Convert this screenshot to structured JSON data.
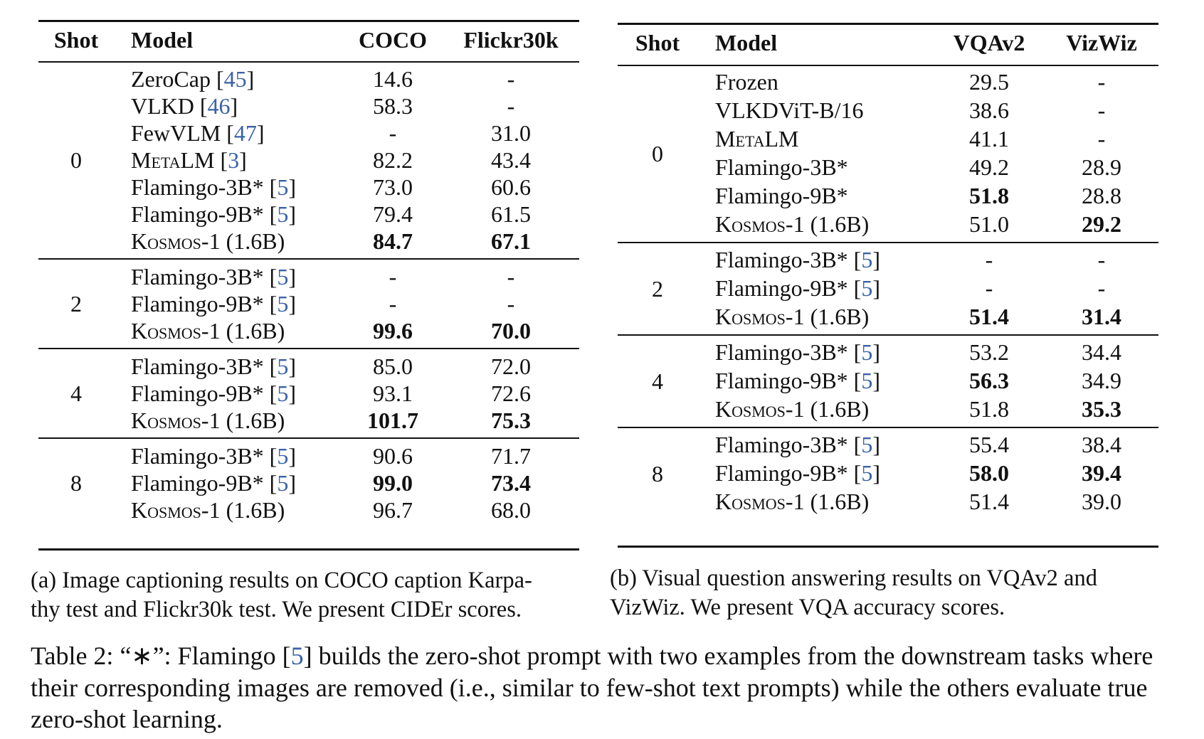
{
  "table_a": {
    "headers": [
      "Shot",
      "Model",
      "COCO",
      "Flickr30k"
    ],
    "groups": [
      {
        "shot": "0",
        "rows": [
          {
            "model": "ZeroCap",
            "ref": "45",
            "coco": "14.6",
            "flickr": "-"
          },
          {
            "model": "VLKD",
            "ref": "46",
            "coco": "58.3",
            "flickr": "-"
          },
          {
            "model": "FewVLM",
            "ref": "47",
            "coco": "-",
            "flickr": "31.0"
          },
          {
            "model": "MetaLM",
            "ref": "3",
            "coco": "82.2",
            "flickr": "43.4"
          },
          {
            "model": "Flamingo-3B*",
            "ref": "5",
            "coco": "73.0",
            "flickr": "60.6"
          },
          {
            "model": "Flamingo-9B*",
            "ref": "5",
            "coco": "79.4",
            "flickr": "61.5"
          },
          {
            "model": "Kosmos-1 (1.6B)",
            "ref": "",
            "coco": "84.7",
            "flickr": "67.1",
            "bold": [
              "coco",
              "flickr"
            ]
          }
        ]
      },
      {
        "shot": "2",
        "rows": [
          {
            "model": "Flamingo-3B*",
            "ref": "5",
            "coco": "-",
            "flickr": "-"
          },
          {
            "model": "Flamingo-9B*",
            "ref": "5",
            "coco": "-",
            "flickr": "-"
          },
          {
            "model": "Kosmos-1 (1.6B)",
            "ref": "",
            "coco": "99.6",
            "flickr": "70.0",
            "bold": [
              "coco",
              "flickr"
            ]
          }
        ]
      },
      {
        "shot": "4",
        "rows": [
          {
            "model": "Flamingo-3B*",
            "ref": "5",
            "coco": "85.0",
            "flickr": "72.0"
          },
          {
            "model": "Flamingo-9B*",
            "ref": "5",
            "coco": "93.1",
            "flickr": "72.6"
          },
          {
            "model": "Kosmos-1 (1.6B)",
            "ref": "",
            "coco": "101.7",
            "flickr": "75.3",
            "bold": [
              "coco",
              "flickr"
            ]
          }
        ]
      },
      {
        "shot": "8",
        "rows": [
          {
            "model": "Flamingo-3B*",
            "ref": "5",
            "coco": "90.6",
            "flickr": "71.7"
          },
          {
            "model": "Flamingo-9B*",
            "ref": "5",
            "coco": "99.0",
            "flickr": "73.4",
            "bold": [
              "coco",
              "flickr"
            ]
          },
          {
            "model": "Kosmos-1 (1.6B)",
            "ref": "",
            "coco": "96.7",
            "flickr": "68.0"
          }
        ]
      }
    ],
    "caption": "(a) Image captioning results on COCO caption Karpa-\nthy test and Flickr30k test. We present CIDEr scores."
  },
  "table_b": {
    "headers": [
      "Shot",
      "Model",
      "VQAv2",
      "VizWiz"
    ],
    "groups": [
      {
        "shot": "0",
        "rows": [
          {
            "model": "Frozen",
            "ref": "",
            "vqa": "29.5",
            "viz": "-"
          },
          {
            "model": "VLKDViT-B/16",
            "ref": "",
            "vqa": "38.6",
            "viz": "-"
          },
          {
            "model": "MetaLM",
            "ref": "",
            "vqa": "41.1",
            "viz": "-"
          },
          {
            "model": "Flamingo-3B*",
            "ref": "",
            "vqa": "49.2",
            "viz": "28.9"
          },
          {
            "model": "Flamingo-9B*",
            "ref": "",
            "vqa": "51.8",
            "viz": "28.8",
            "bold": [
              "vqa"
            ]
          },
          {
            "model": "Kosmos-1 (1.6B)",
            "ref": "",
            "vqa": "51.0",
            "viz": "29.2",
            "bold": [
              "viz"
            ]
          }
        ]
      },
      {
        "shot": "2",
        "rows": [
          {
            "model": "Flamingo-3B*",
            "ref": "5",
            "vqa": "-",
            "viz": "-"
          },
          {
            "model": "Flamingo-9B*",
            "ref": "5",
            "vqa": "-",
            "viz": "-"
          },
          {
            "model": "Kosmos-1 (1.6B)",
            "ref": "",
            "vqa": "51.4",
            "viz": "31.4",
            "bold": [
              "vqa",
              "viz"
            ]
          }
        ]
      },
      {
        "shot": "4",
        "rows": [
          {
            "model": "Flamingo-3B*",
            "ref": "5",
            "vqa": "53.2",
            "viz": "34.4"
          },
          {
            "model": "Flamingo-9B*",
            "ref": "5",
            "vqa": "56.3",
            "viz": "34.9",
            "bold": [
              "vqa"
            ]
          },
          {
            "model": "Kosmos-1 (1.6B)",
            "ref": "",
            "vqa": "51.8",
            "viz": "35.3",
            "bold": [
              "viz"
            ]
          }
        ]
      },
      {
        "shot": "8",
        "rows": [
          {
            "model": "Flamingo-3B*",
            "ref": "5",
            "vqa": "55.4",
            "viz": "38.4"
          },
          {
            "model": "Flamingo-9B*",
            "ref": "5",
            "vqa": "58.0",
            "viz": "39.4",
            "bold": [
              "vqa",
              "viz"
            ]
          },
          {
            "model": "Kosmos-1 (1.6B)",
            "ref": "",
            "vqa": "51.4",
            "viz": "39.0"
          }
        ]
      }
    ],
    "caption": "(b) Visual question answering results on VQAv2 and\nVizWiz. We present VQA accuracy scores."
  },
  "main_caption": {
    "prefix": "Table 2: “∗”: Flamingo ",
    "ref": "5",
    "rest": " builds the zero-shot prompt with two examples from the downstream tasks where their corresponding images are removed (i.e., similar to few-shot text prompts) while the others evaluate true zero-shot learning."
  }
}
